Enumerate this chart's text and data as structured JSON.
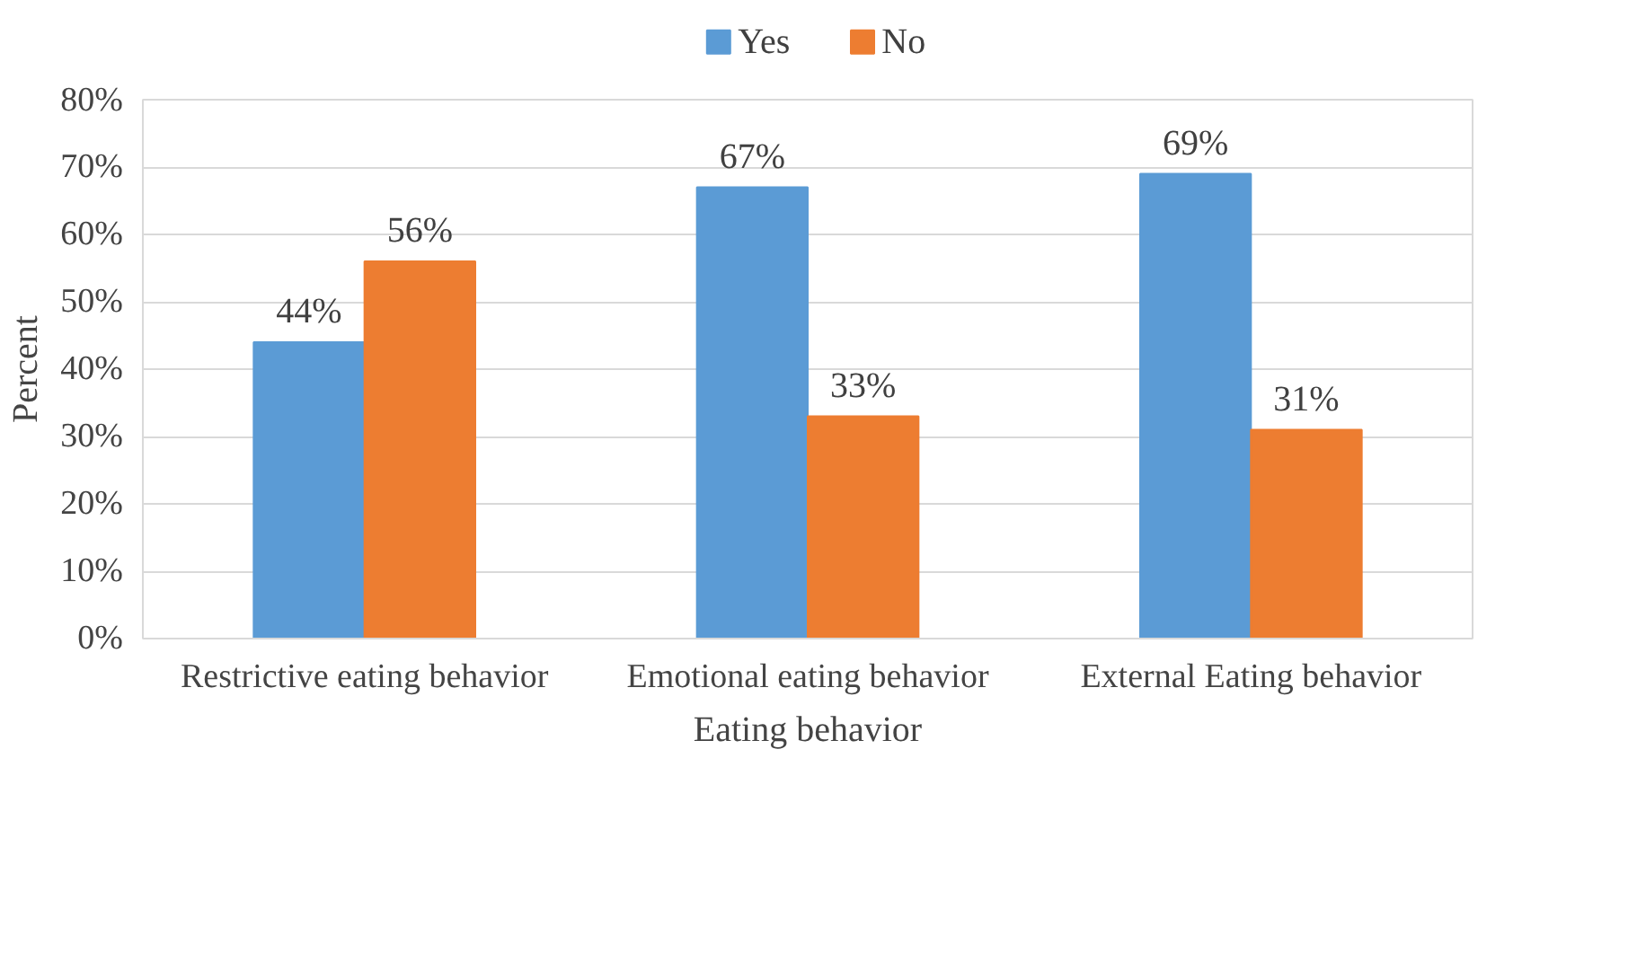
{
  "chart_data": {
    "type": "bar",
    "xlabel": "Eating behavior",
    "ylabel": "Percent",
    "categories": [
      "Restrictive eating behavior",
      "Emotional eating behavior",
      "External Eating behavior"
    ],
    "series": [
      {
        "name": "Yes",
        "color": "#5b9bd5",
        "values": [
          44,
          67,
          69
        ],
        "value_labels": [
          "44%",
          "67%",
          "69%"
        ]
      },
      {
        "name": "No",
        "color": "#ed7d31",
        "values": [
          56,
          33,
          31
        ],
        "value_labels": [
          "56%",
          "33%",
          "31%"
        ]
      }
    ],
    "ylim": [
      0,
      80
    ],
    "yticks": [
      {
        "value": 0,
        "label": "0%"
      },
      {
        "value": 10,
        "label": "10%"
      },
      {
        "value": 20,
        "label": "20%"
      },
      {
        "value": 30,
        "label": "30%"
      },
      {
        "value": 40,
        "label": "40%"
      },
      {
        "value": 50,
        "label": "50%"
      },
      {
        "value": 60,
        "label": "60%"
      },
      {
        "value": 70,
        "label": "70%"
      },
      {
        "value": 80,
        "label": "80%"
      }
    ],
    "grid": "y",
    "legend": "top"
  }
}
